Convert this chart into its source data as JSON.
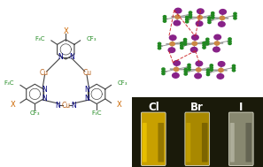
{
  "colors": {
    "X": "#cc6600",
    "CF3": "#228b22",
    "N": "#000080",
    "Cu": "#b8601a",
    "bond": "#444444",
    "bg": "#ffffff"
  },
  "right_top": {
    "purple": "#882288",
    "green": "#228822",
    "copper": "#cc8844",
    "gray": "#888888",
    "red_dash": "#cc2222",
    "bond_gray": "#999999"
  },
  "right_bottom": {
    "labels": [
      "Cl",
      "Br",
      "I"
    ],
    "bg_dark": "#222211",
    "vial_colors": [
      "#c8a000",
      "#b89000",
      "#aaaaaa"
    ],
    "vial_highlight": [
      "#e8d040",
      "#d8c020",
      "#cccccc"
    ],
    "text_color": "#ffffff"
  },
  "figsize": [
    2.97,
    1.89
  ],
  "dpi": 100
}
